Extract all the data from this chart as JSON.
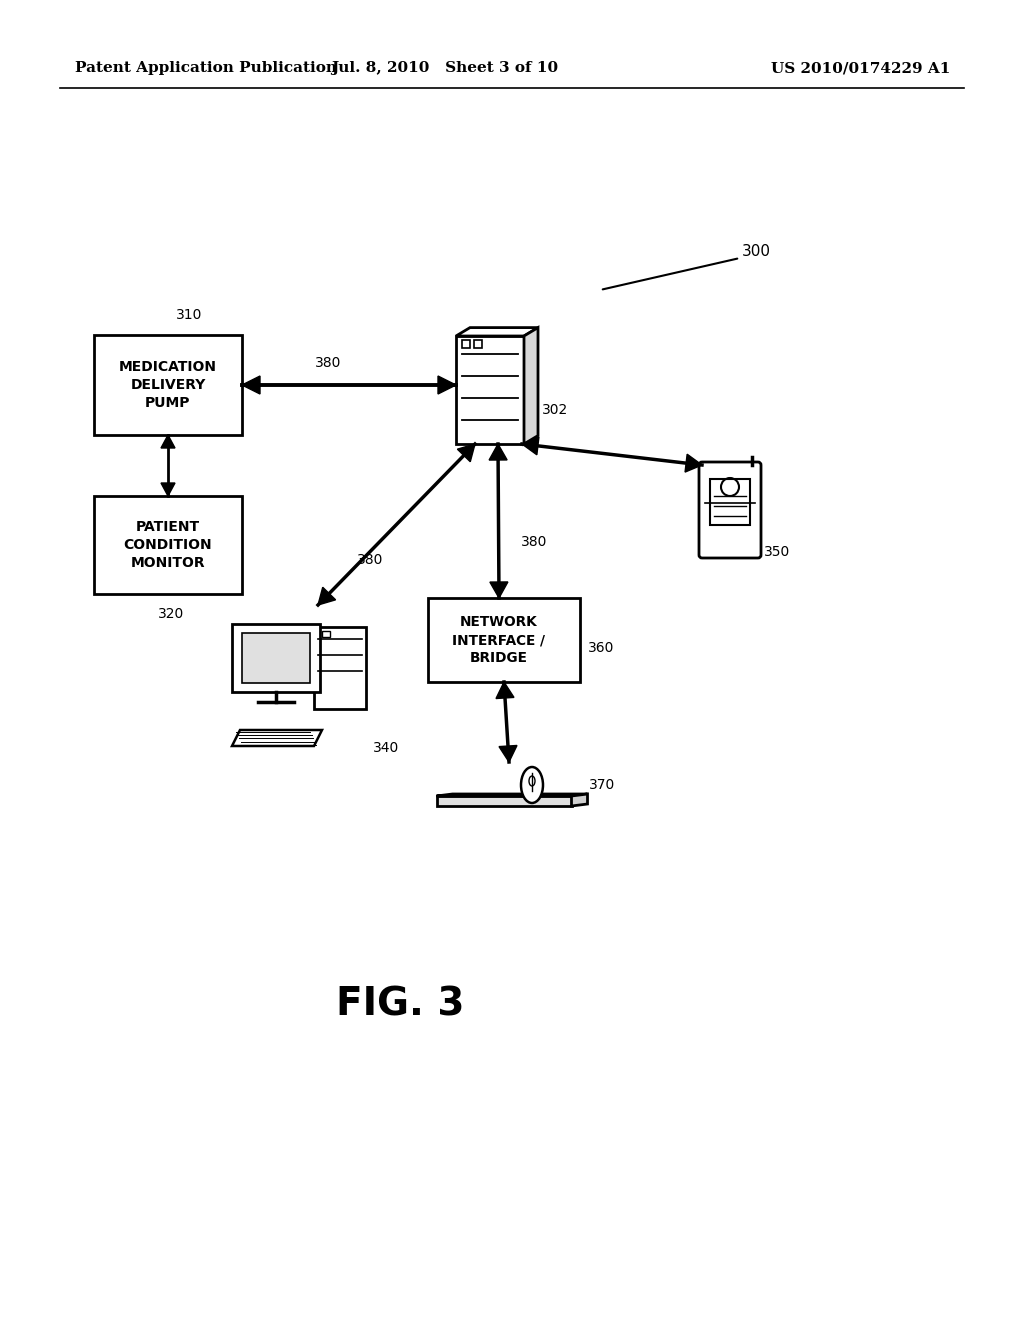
{
  "bg_color": "#ffffff",
  "header_left": "Patent Application Publication",
  "header_mid": "Jul. 8, 2010   Sheet 3 of 10",
  "header_right": "US 2010/0174229 A1",
  "fig_label": "FIG. 3",
  "label_300": "300",
  "label_302": "302",
  "label_310": "310",
  "label_320": "320",
  "label_340": "340",
  "label_350": "350",
  "label_360": "360",
  "label_370": "370",
  "label_380a": "380",
  "label_380b": "380",
  "label_380c": "380",
  "box_310_text": "MEDICATION\nDELIVERY\nPUMP",
  "box_320_text": "PATIENT\nCONDITION\nMONITOR",
  "box_360_text": "NETWORK\nINTERFACE /\nBRIDGE"
}
